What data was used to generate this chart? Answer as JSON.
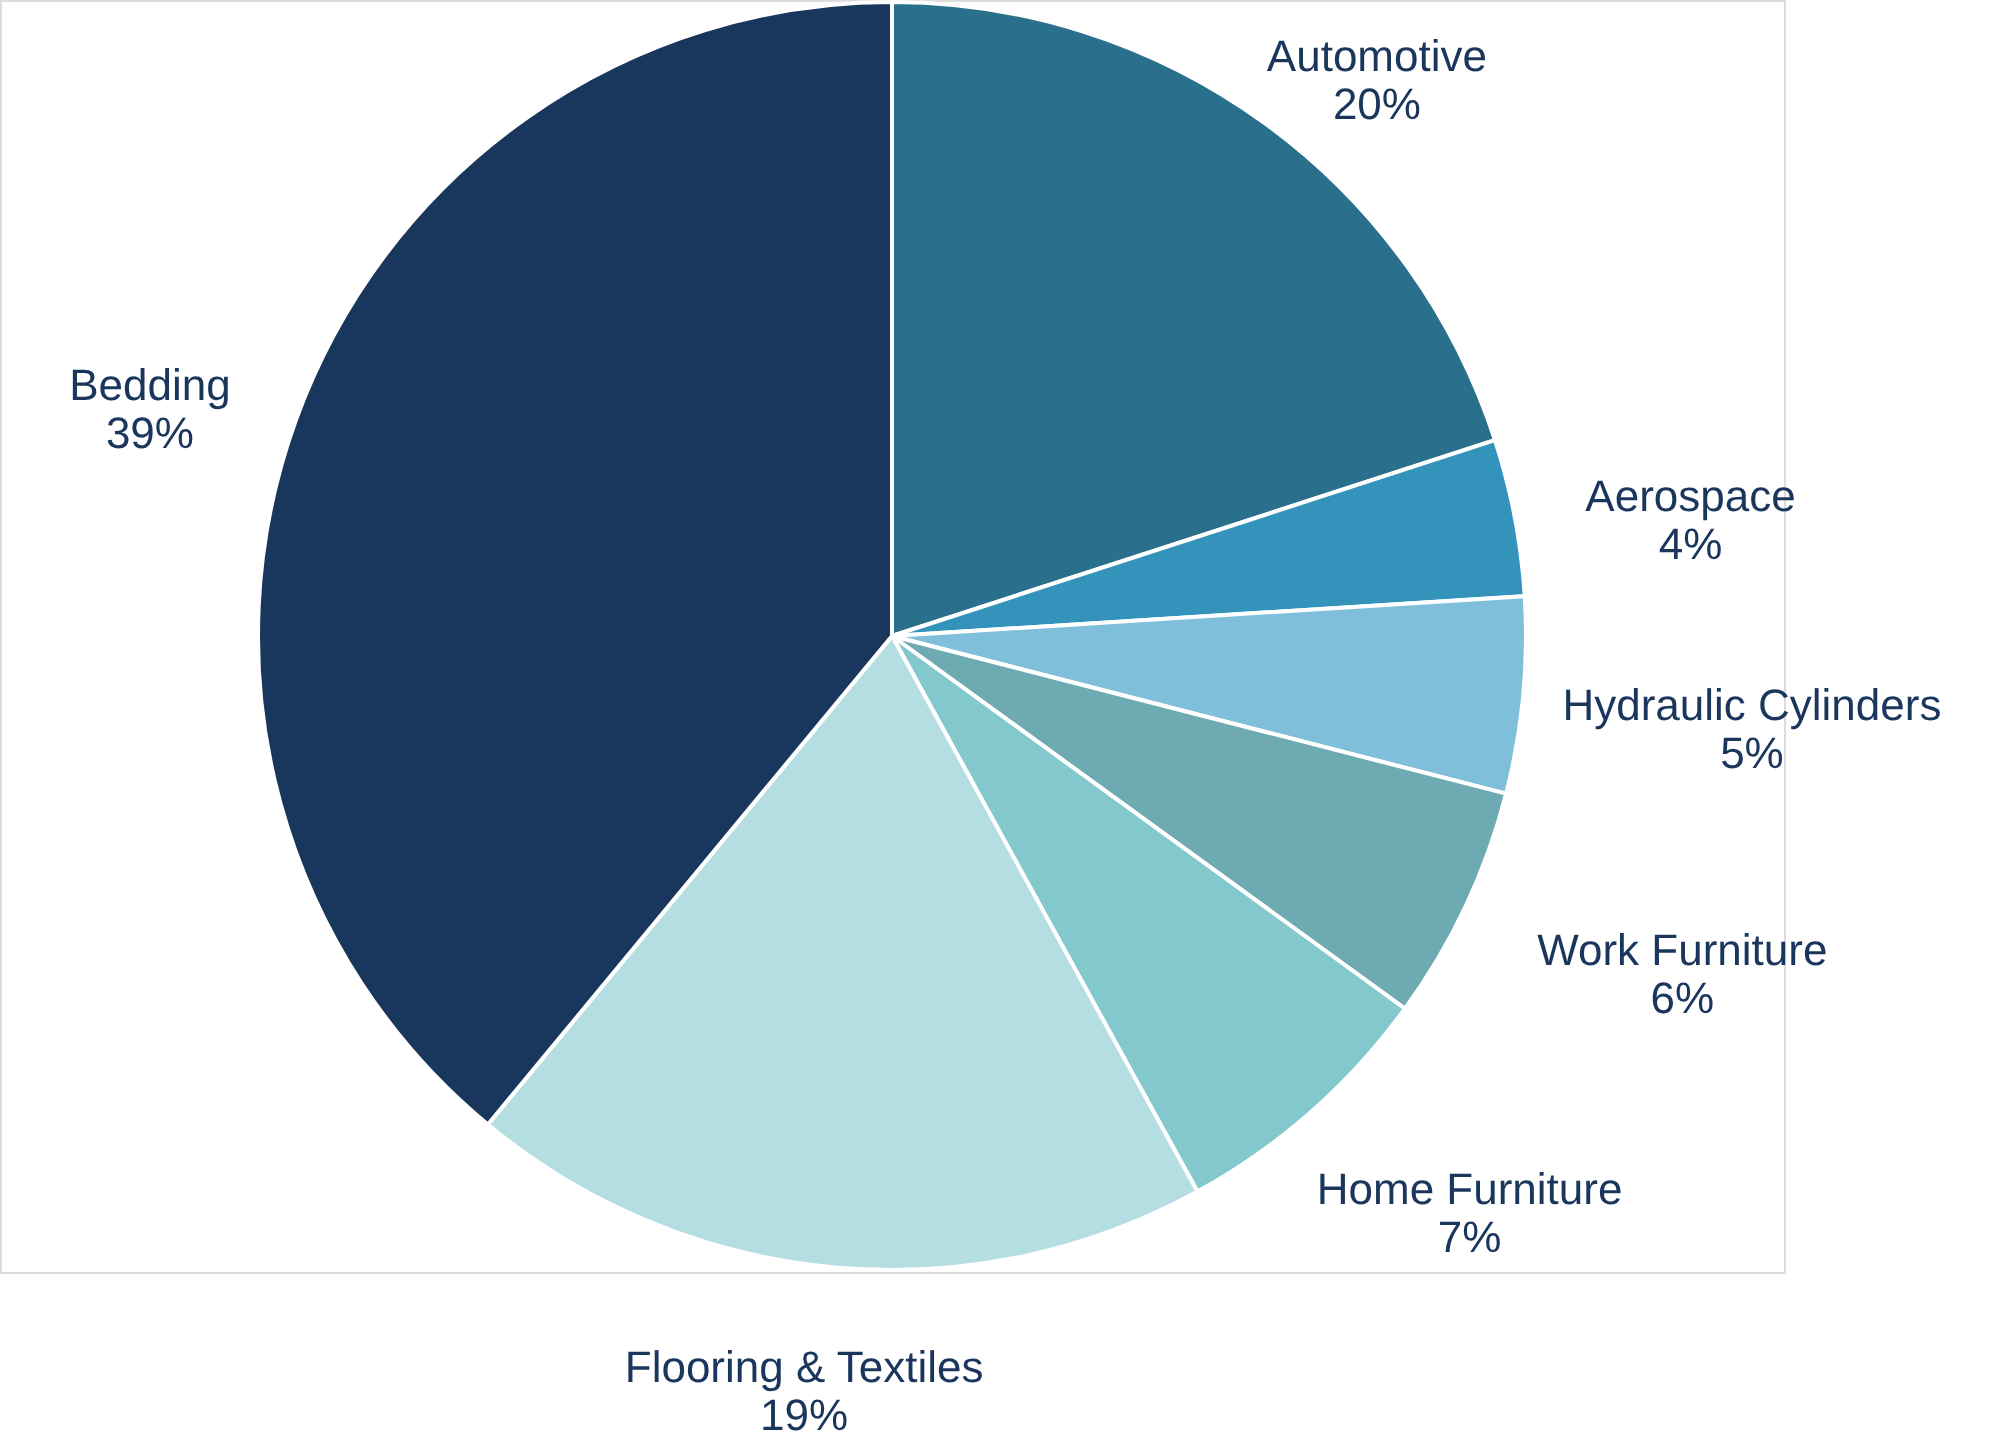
{
  "chart_data": {
    "type": "pie",
    "categories": [
      "Automotive",
      "Aerospace",
      "Hydraulic Cylinders",
      "Work Furniture",
      "Home Furniture",
      "Flooring & Textiles",
      "Bedding"
    ],
    "values": [
      20,
      4,
      5,
      6,
      7,
      19,
      39
    ],
    "value_labels": [
      "20%",
      "4%",
      "5%",
      "6%",
      "7%",
      "19%",
      "39%"
    ],
    "colors": [
      "#2a6f8b",
      "#3493bb",
      "#80bfd9",
      "#6eaab1",
      "#82c8cd",
      "#b5dee2",
      "#19365c"
    ]
  }
}
